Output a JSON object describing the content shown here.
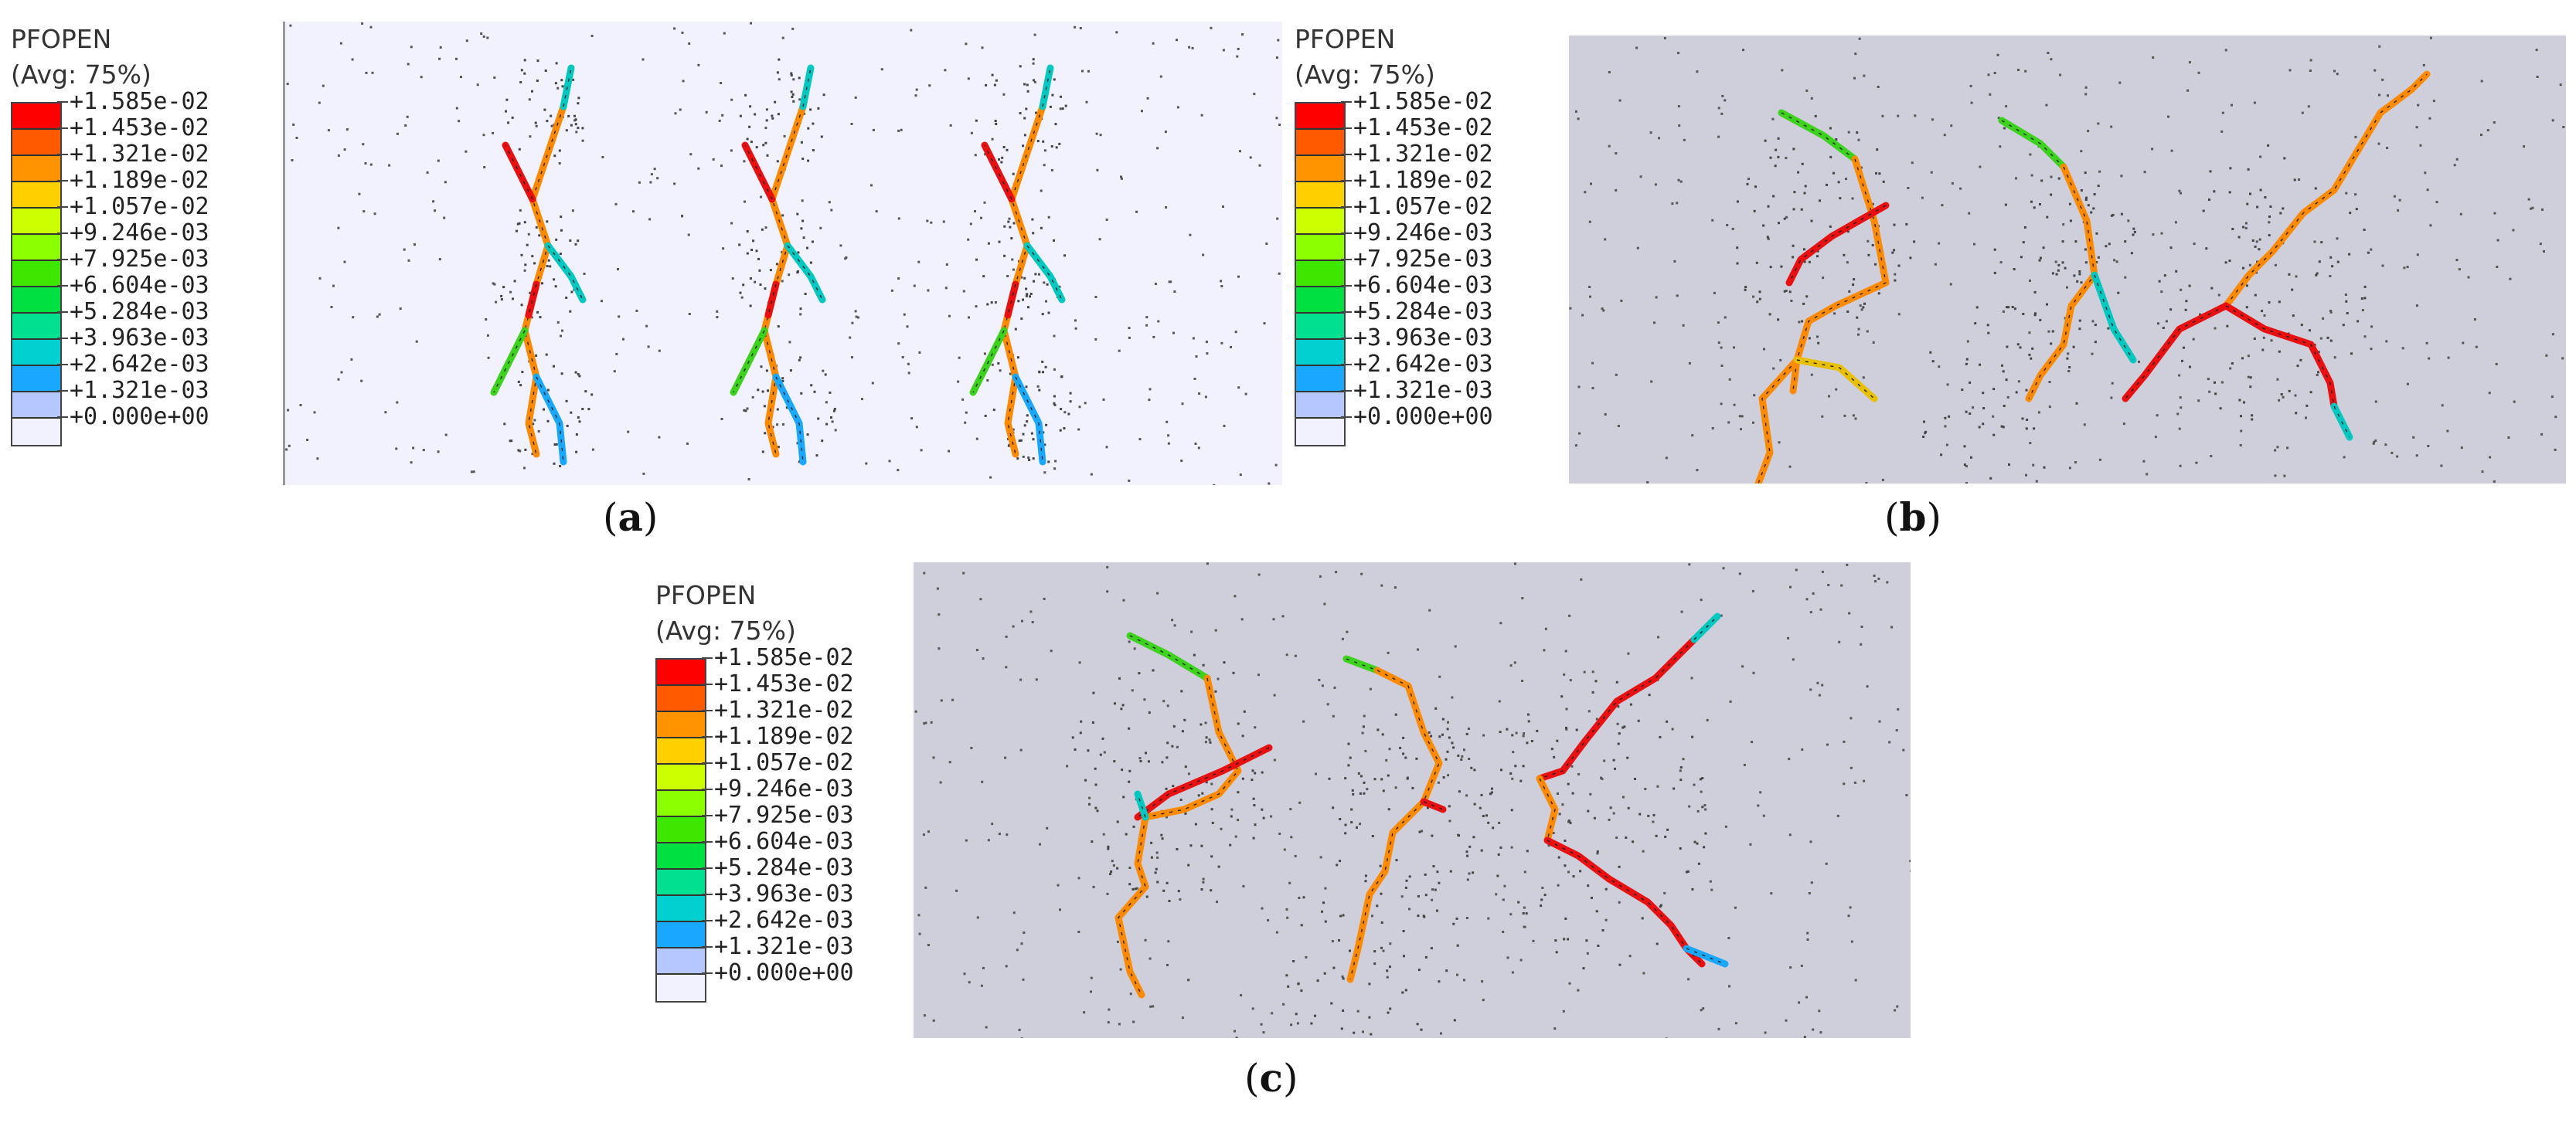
{
  "legend": {
    "title": "PFOPEN",
    "subtitle": "(Avg: 75%)",
    "entries": [
      {
        "label": "+1.585e-02",
        "color": "#ff0000"
      },
      {
        "label": "+1.453e-02",
        "color": "#ff5a00"
      },
      {
        "label": "+1.321e-02",
        "color": "#ff9400"
      },
      {
        "label": "+1.189e-02",
        "color": "#ffd000"
      },
      {
        "label": "+1.057e-02",
        "color": "#ccff00"
      },
      {
        "label": "+9.246e-03",
        "color": "#8cff00"
      },
      {
        "label": "+7.925e-03",
        "color": "#3fe600"
      },
      {
        "label": "+6.604e-03",
        "color": "#00e040"
      },
      {
        "label": "+5.284e-03",
        "color": "#00e090"
      },
      {
        "label": "+3.963e-03",
        "color": "#00d0d0"
      },
      {
        "label": "+2.642e-03",
        "color": "#1aa8ff"
      },
      {
        "label": "+1.321e-03",
        "color": "#b4c8ff"
      },
      {
        "label": "+0.000e+00",
        "color": "#f2f2ff"
      }
    ]
  },
  "panels": [
    {
      "id": "a",
      "caption_letter": "a",
      "background": "#f2f2ff"
    },
    {
      "id": "b",
      "caption_letter": "b",
      "background": "#cfcfdb"
    },
    {
      "id": "c",
      "caption_letter": "c",
      "background": "#cfcfdb"
    }
  ]
}
